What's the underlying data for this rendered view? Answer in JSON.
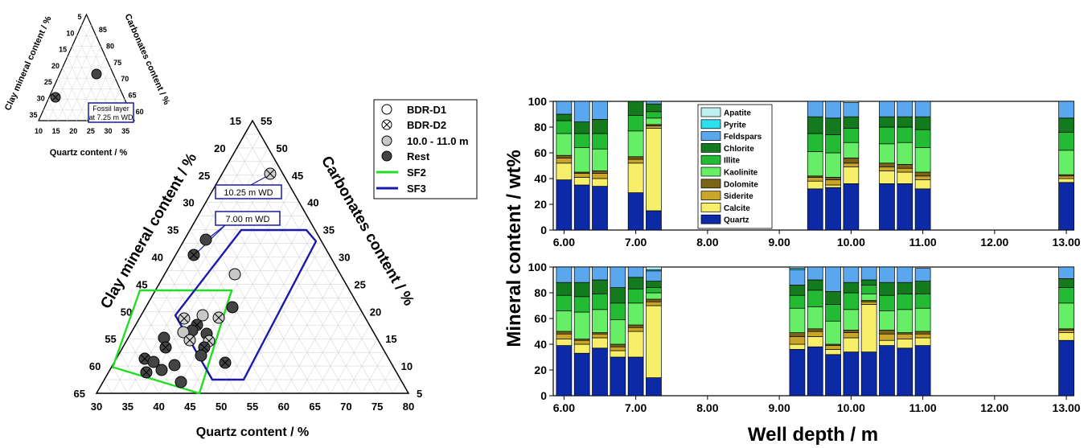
{
  "ternary": {
    "main": {
      "left_axis_label": "Clay mineral content / %",
      "right_axis_label": "Carbonates content / %",
      "bottom_axis_label": "Quartz content / %",
      "bottom_ticks": [
        "30",
        "35",
        "40",
        "45",
        "50",
        "55",
        "60",
        "65",
        "70",
        "75",
        "80"
      ],
      "left_ticks": [
        "15",
        "20",
        "25",
        "30",
        "35",
        "40",
        "45",
        "50",
        "55",
        "60",
        "65"
      ],
      "right_ticks": [
        "55",
        "50",
        "45",
        "40",
        "35",
        "30",
        "25",
        "20",
        "15",
        "10",
        "5"
      ],
      "annotations": [
        "10.25 m WD",
        "7.00 m WD"
      ]
    },
    "inset": {
      "left_axis_label": "Clay mineral content / %",
      "right_axis_label": "Carbonates content / %",
      "bottom_axis_label": "Quartz content / %",
      "bottom_ticks": [
        "10",
        "15",
        "20",
        "25",
        "30",
        "35"
      ],
      "left_ticks": [
        "5",
        "10",
        "15",
        "20",
        "25",
        "30",
        "35"
      ],
      "right_ticks": [
        "85",
        "80",
        "75",
        "70",
        "65",
        "60"
      ],
      "annotation_line1": "Fossil layer",
      "annotation_line2": "at 7.25 m WD"
    },
    "legend": [
      {
        "label": "BDR-D1",
        "symbol": "open-circle"
      },
      {
        "label": "BDR-D2",
        "symbol": "crossed-circle"
      },
      {
        "label": "10.0 - 11.0 m",
        "symbol": "grey-circle"
      },
      {
        "label": "Rest",
        "symbol": "dark-circle"
      },
      {
        "label": "SF2",
        "symbol": "green-line",
        "color": "#22dd22"
      },
      {
        "label": "SF3",
        "symbol": "blue-line",
        "color": "#1a1aaa"
      }
    ]
  },
  "chart_data": [
    {
      "type": "bar",
      "stacked": true,
      "panel": "top",
      "ylabel": "Mineral content / wt%",
      "ylim": [
        0,
        100
      ],
      "xlim": [
        5.85,
        13.1
      ],
      "x_ticks": [
        "6.00",
        "7.00",
        "8.00",
        "9.00",
        "10.00",
        "11.00",
        "12.00",
        "13.00"
      ],
      "y_ticks": [
        "0",
        "20",
        "40",
        "60",
        "80",
        "100"
      ],
      "components": [
        "Quartz",
        "Calcite",
        "Siderite",
        "Dolomite",
        "Kaolinite",
        "Illite",
        "Chlorite",
        "Feldspars",
        "Pyrite",
        "Apatite"
      ],
      "x": [
        6.0,
        6.25,
        6.5,
        7.0,
        7.25,
        9.5,
        9.75,
        10.0,
        10.5,
        10.75,
        11.0,
        13.0
      ],
      "series": [
        {
          "name": "Quartz",
          "values": [
            39,
            35,
            34,
            29,
            15,
            32,
            33,
            36,
            36,
            36,
            32,
            37
          ]
        },
        {
          "name": "Calcite",
          "values": [
            13,
            6,
            6,
            23,
            64,
            6,
            2,
            13,
            10,
            9,
            7,
            3
          ]
        },
        {
          "name": "Siderite",
          "values": [
            4,
            3,
            4,
            3,
            2,
            3,
            4,
            3,
            3,
            3,
            3,
            2
          ]
        },
        {
          "name": "Dolomite",
          "values": [
            2,
            1,
            2,
            2,
            1,
            1,
            2,
            4,
            3,
            3,
            3,
            1
          ]
        },
        {
          "name": "Kaolinite",
          "values": [
            17,
            19,
            17,
            20,
            5,
            19,
            19,
            12,
            15,
            17,
            19,
            19
          ]
        },
        {
          "name": "Illite",
          "values": [
            10,
            11,
            12,
            12,
            5,
            14,
            14,
            11,
            13,
            12,
            14,
            14
          ]
        },
        {
          "name": "Chlorite",
          "values": [
            5,
            9,
            11,
            11,
            6,
            13,
            13,
            9,
            8,
            8,
            10,
            11
          ]
        },
        {
          "name": "Feldspars",
          "values": [
            10,
            16,
            14,
            0,
            2,
            12,
            13,
            11,
            12,
            12,
            12,
            13
          ]
        },
        {
          "name": "Pyrite",
          "values": [
            0,
            0,
            0,
            0,
            0,
            0,
            0,
            0,
            0,
            0,
            0,
            0
          ]
        },
        {
          "name": "Apatite",
          "values": [
            0,
            0,
            0,
            0,
            0,
            0,
            0,
            1,
            0,
            0,
            0,
            0
          ]
        }
      ]
    },
    {
      "type": "bar",
      "stacked": true,
      "panel": "bottom",
      "xlabel": "Well depth / m",
      "ylabel": "Mineral content / wt%",
      "ylim": [
        0,
        100
      ],
      "xlim": [
        5.85,
        13.1
      ],
      "x_ticks": [
        "6.00",
        "7.00",
        "8.00",
        "9.00",
        "10.00",
        "11.00",
        "12.00",
        "13.00"
      ],
      "y_ticks": [
        "0",
        "20",
        "40",
        "60",
        "80",
        "100"
      ],
      "components": [
        "Quartz",
        "Calcite",
        "Siderite",
        "Dolomite",
        "Kaolinite",
        "Illite",
        "Chlorite",
        "Feldspars",
        "Pyrite",
        "Apatite"
      ],
      "x": [
        6.0,
        6.25,
        6.5,
        6.75,
        7.0,
        7.25,
        9.25,
        9.5,
        9.75,
        10.0,
        10.25,
        10.5,
        10.75,
        11.0,
        13.0
      ],
      "series": [
        {
          "name": "Quartz",
          "values": [
            39,
            33,
            37,
            30,
            30,
            14,
            36,
            38,
            32,
            34,
            34,
            39,
            37,
            39,
            43
          ]
        },
        {
          "name": "Calcite",
          "values": [
            5,
            7,
            8,
            5,
            20,
            56,
            4,
            8,
            4,
            11,
            37,
            4,
            7,
            6,
            6
          ]
        },
        {
          "name": "Siderite",
          "values": [
            4,
            3,
            3,
            3,
            3,
            3,
            6,
            4,
            3,
            4,
            2,
            5,
            4,
            3,
            2
          ]
        },
        {
          "name": "Dolomite",
          "values": [
            2,
            1,
            1,
            2,
            2,
            2,
            3,
            2,
            1,
            2,
            1,
            3,
            1,
            2,
            1
          ]
        },
        {
          "name": "Kaolinite",
          "values": [
            16,
            21,
            18,
            19,
            17,
            5,
            19,
            17,
            18,
            16,
            5,
            15,
            18,
            18,
            20
          ]
        },
        {
          "name": "Illite",
          "values": [
            12,
            12,
            12,
            13,
            11,
            4,
            10,
            13,
            13,
            13,
            7,
            12,
            12,
            11,
            12
          ]
        },
        {
          "name": "Chlorite",
          "values": [
            10,
            11,
            11,
            12,
            9,
            5,
            8,
            8,
            10,
            8,
            4,
            10,
            9,
            10,
            7
          ]
        },
        {
          "name": "Feldspars",
          "values": [
            12,
            12,
            10,
            16,
            8,
            8,
            12,
            10,
            19,
            12,
            10,
            12,
            12,
            10,
            9
          ]
        },
        {
          "name": "Pyrite",
          "values": [
            0,
            0,
            0,
            0,
            0,
            1,
            1,
            0,
            0,
            0,
            0,
            0,
            0,
            0,
            0
          ]
        },
        {
          "name": "Apatite",
          "values": [
            0,
            0,
            0,
            0,
            0,
            2,
            1,
            0,
            0,
            0,
            0,
            0,
            0,
            0,
            0
          ]
        }
      ]
    }
  ],
  "colors": {
    "Quartz": "#0c2aa6",
    "Calcite": "#f7ee6a",
    "Siderite": "#c9a52a",
    "Dolomite": "#7a6418",
    "Kaolinite": "#66ee66",
    "Illite": "#22bb33",
    "Chlorite": "#137a1e",
    "Feldspars": "#5aa7ee",
    "Pyrite": "#2de0ee",
    "Apatite": "#bff1f1"
  },
  "bar_legend_order": [
    "Apatite",
    "Pyrite",
    "Feldspars",
    "Chlorite",
    "Illite",
    "Kaolinite",
    "Dolomite",
    "Siderite",
    "Calcite",
    "Quartz"
  ]
}
